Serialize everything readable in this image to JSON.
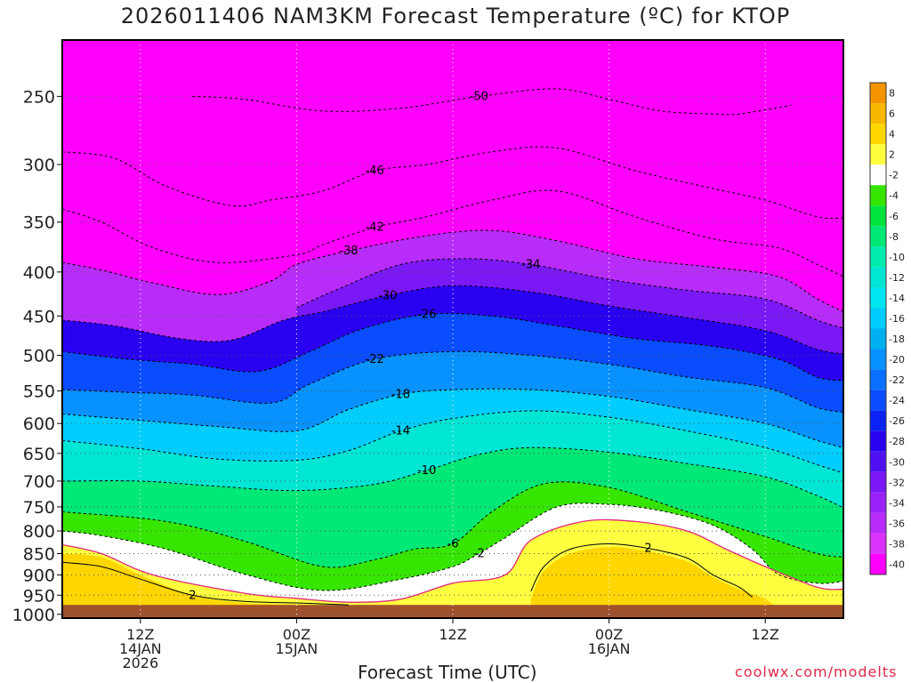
{
  "title": "2026011406 NAM3KM Forecast Temperature (ºC) for KTOP",
  "credit": "coolwx.com/modelts",
  "chart_data": {
    "type": "contour",
    "title": "2026011406 NAM3KM Forecast Temperature (ºC) for KTOP",
    "xlabel": "Forecast Time (UTC)",
    "ylabel": "",
    "y_axis_unit": "hPa",
    "y_scale": "log-pressure",
    "ylim": [
      1000,
      200
    ],
    "y_ticks": [
      250,
      300,
      350,
      400,
      450,
      500,
      550,
      600,
      650,
      700,
      750,
      800,
      850,
      900,
      950,
      1000
    ],
    "x_ticks": [
      {
        "hour": 6,
        "lines": [
          "12Z",
          "14JAN",
          "2026"
        ]
      },
      {
        "hour": 18,
        "lines": [
          "00Z",
          "15JAN"
        ]
      },
      {
        "hour": 30,
        "lines": [
          "12Z"
        ]
      },
      {
        "hour": 42,
        "lines": [
          "00Z",
          "16JAN"
        ]
      },
      {
        "hour": 54,
        "lines": [
          "12Z"
        ]
      }
    ],
    "xlim": [
      0,
      60
    ],
    "grid": true,
    "colorbar": {
      "labels": [
        "8",
        "6",
        "4",
        "2",
        "-2",
        "-4",
        "-6",
        "-8",
        "-10",
        "-12",
        "-14",
        "-16",
        "-18",
        "-20",
        "-22",
        "-24",
        "-26",
        "-28",
        "-30",
        "-32",
        "-34",
        "-36",
        "-38",
        "-40"
      ],
      "colors": [
        "#f39400",
        "#f8b800",
        "#ffd600",
        "#ffff40",
        "#ffffff",
        "#36e600",
        "#00e33c",
        "#00e876",
        "#00ecac",
        "#00e6d4",
        "#00e6f0",
        "#00cdfb",
        "#00b0f0",
        "#0892ff",
        "#0a70ff",
        "#0a4cff",
        "#0a22f4",
        "#2a00f0",
        "#5010f4",
        "#7a18f6",
        "#9a22f8",
        "#b82cfa",
        "#dc33fb",
        "#ff00ff"
      ]
    },
    "isotherms": [
      {
        "temp": -50,
        "label": "-50",
        "points": [
          [
            10,
            250
          ],
          [
            14,
            252
          ],
          [
            20,
            260
          ],
          [
            26,
            258
          ],
          [
            32,
            250
          ],
          [
            38,
            245
          ],
          [
            42,
            252
          ],
          [
            46,
            260
          ],
          [
            50,
            262
          ],
          [
            52,
            262
          ],
          [
            56,
            256
          ]
        ]
      },
      {
        "temp": -46,
        "label": "-46",
        "points": [
          [
            0,
            290
          ],
          [
            4,
            295
          ],
          [
            8,
            318
          ],
          [
            13,
            335
          ],
          [
            16,
            330
          ],
          [
            20,
            322
          ],
          [
            24,
            305
          ],
          [
            28,
            300
          ],
          [
            33,
            290
          ],
          [
            38,
            287
          ],
          [
            44,
            305
          ],
          [
            50,
            320
          ],
          [
            54,
            330
          ],
          [
            58,
            345
          ],
          [
            60,
            346
          ]
        ]
      },
      {
        "temp": -42,
        "label": "-42",
        "points": [
          [
            0,
            338
          ],
          [
            3,
            350
          ],
          [
            7,
            375
          ],
          [
            12,
            390
          ],
          [
            18,
            382
          ],
          [
            20,
            372
          ],
          [
            24,
            355
          ],
          [
            28,
            345
          ],
          [
            33,
            330
          ],
          [
            38,
            322
          ],
          [
            44,
            345
          ],
          [
            50,
            366
          ],
          [
            55,
            375
          ],
          [
            58,
            392
          ],
          [
            60,
            405
          ]
        ]
      },
      {
        "temp": -38,
        "label": "-38",
        "points": [
          [
            0,
            390
          ],
          [
            3,
            398
          ],
          [
            7,
            412
          ],
          [
            12,
            425
          ],
          [
            16,
            410
          ],
          [
            18,
            392
          ],
          [
            22,
            378
          ],
          [
            28,
            363
          ],
          [
            33,
            358
          ],
          [
            38,
            368
          ],
          [
            44,
            386
          ],
          [
            50,
            395
          ],
          [
            55,
            405
          ],
          [
            58,
            430
          ],
          [
            60,
            445
          ]
        ]
      },
      {
        "temp": -34,
        "label": "-34",
        "points": [
          [
            18,
            440
          ],
          [
            21,
            420
          ],
          [
            26,
            392
          ],
          [
            31,
            386
          ],
          [
            36,
            392
          ],
          [
            42,
            408
          ],
          [
            48,
            420
          ],
          [
            54,
            430
          ],
          [
            58,
            455
          ],
          [
            60,
            465
          ]
        ]
      },
      {
        "temp": -30,
        "label": "-30",
        "points": [
          [
            0,
            455
          ],
          [
            4,
            462
          ],
          [
            9,
            478
          ],
          [
            13,
            480
          ],
          [
            17,
            455
          ],
          [
            20,
            445
          ],
          [
            25,
            426
          ],
          [
            30,
            415
          ],
          [
            36,
            422
          ],
          [
            42,
            438
          ],
          [
            48,
            452
          ],
          [
            54,
            468
          ],
          [
            58,
            492
          ],
          [
            60,
            498
          ]
        ]
      },
      {
        "temp": -26,
        "label": "-26",
        "points": [
          [
            0,
            495
          ],
          [
            5,
            505
          ],
          [
            10,
            512
          ],
          [
            15,
            522
          ],
          [
            19,
            495
          ],
          [
            23,
            466
          ],
          [
            28,
            448
          ],
          [
            33,
            450
          ],
          [
            38,
            462
          ],
          [
            44,
            478
          ],
          [
            50,
            488
          ],
          [
            55,
            505
          ],
          [
            58,
            530
          ],
          [
            60,
            535
          ]
        ]
      },
      {
        "temp": -22,
        "label": "-22",
        "points": [
          [
            0,
            548
          ],
          [
            5,
            552
          ],
          [
            10,
            556
          ],
          [
            16,
            568
          ],
          [
            19,
            540
          ],
          [
            24,
            505
          ],
          [
            30,
            495
          ],
          [
            36,
            500
          ],
          [
            42,
            512
          ],
          [
            48,
            530
          ],
          [
            54,
            545
          ],
          [
            58,
            575
          ],
          [
            60,
            582
          ]
        ]
      },
      {
        "temp": -18,
        "label": "-18",
        "points": [
          [
            0,
            585
          ],
          [
            6,
            595
          ],
          [
            12,
            605
          ],
          [
            18,
            612
          ],
          [
            22,
            578
          ],
          [
            26,
            555
          ],
          [
            30,
            548
          ],
          [
            36,
            548
          ],
          [
            42,
            558
          ],
          [
            48,
            578
          ],
          [
            54,
            600
          ],
          [
            58,
            628
          ],
          [
            60,
            640
          ]
        ]
      },
      {
        "temp": -14,
        "label": "-14",
        "points": [
          [
            0,
            628
          ],
          [
            6,
            642
          ],
          [
            12,
            660
          ],
          [
            18,
            662
          ],
          [
            22,
            645
          ],
          [
            26,
            612
          ],
          [
            30,
            592
          ],
          [
            36,
            580
          ],
          [
            42,
            590
          ],
          [
            48,
            612
          ],
          [
            54,
            640
          ],
          [
            58,
            670
          ],
          [
            60,
            685
          ]
        ]
      },
      {
        "temp": -10,
        "label": "-10",
        "points": [
          [
            0,
            700
          ],
          [
            6,
            700
          ],
          [
            12,
            710
          ],
          [
            18,
            718
          ],
          [
            24,
            706
          ],
          [
            28,
            680
          ],
          [
            32,
            652
          ],
          [
            36,
            640
          ],
          [
            42,
            648
          ],
          [
            48,
            668
          ],
          [
            54,
            692
          ],
          [
            58,
            728
          ],
          [
            60,
            752
          ]
        ]
      },
      {
        "temp": -6,
        "label": "-6",
        "points": [
          [
            0,
            760
          ],
          [
            8,
            780
          ],
          [
            14,
            822
          ],
          [
            20,
            880
          ],
          [
            24,
            864
          ],
          [
            27,
            840
          ],
          [
            30,
            828
          ],
          [
            33,
            760
          ],
          [
            37,
            705
          ],
          [
            42,
            712
          ],
          [
            48,
            760
          ],
          [
            54,
            812
          ],
          [
            58,
            850
          ],
          [
            60,
            858
          ]
        ]
      },
      {
        "temp": -2,
        "label": "-2",
        "points": [
          [
            0,
            800
          ],
          [
            3,
            810
          ],
          [
            8,
            840
          ],
          [
            14,
            898
          ],
          [
            20,
            938
          ],
          [
            26,
            910
          ],
          [
            30,
            880
          ],
          [
            32,
            850
          ],
          [
            34,
            815
          ],
          [
            38,
            750
          ],
          [
            42,
            745
          ],
          [
            46,
            758
          ],
          [
            50,
            788
          ],
          [
            53,
            840
          ],
          [
            55,
            898
          ],
          [
            58,
            920
          ],
          [
            60,
            915
          ]
        ]
      },
      {
        "temp": 0,
        "label": "",
        "points": [
          [
            0,
            830
          ],
          [
            3,
            850
          ],
          [
            7,
            900
          ],
          [
            14,
            945
          ],
          [
            18,
            958
          ],
          [
            22,
            968
          ],
          [
            26,
            960
          ],
          [
            30,
            920
          ],
          [
            34,
            900
          ],
          [
            36,
            820
          ],
          [
            40,
            780
          ],
          [
            44,
            780
          ],
          [
            48,
            800
          ],
          [
            51,
            840
          ],
          [
            54,
            880
          ],
          [
            58,
            930
          ],
          [
            60,
            935
          ]
        ]
      },
      {
        "temp": 2,
        "label": "2",
        "points": [
          [
            0,
            870
          ],
          [
            3,
            880
          ],
          [
            6,
            910
          ],
          [
            10,
            950
          ],
          [
            14,
            966
          ],
          [
            18,
            970
          ],
          [
            22,
            975
          ]
        ]
      },
      {
        "temp": 2,
        "label": "2",
        "points": [
          [
            36,
            940
          ],
          [
            37,
            880
          ],
          [
            39,
            840
          ],
          [
            42,
            828
          ],
          [
            45,
            838
          ],
          [
            48,
            860
          ],
          [
            50,
            900
          ],
          [
            52,
            930
          ],
          [
            53,
            955
          ]
        ]
      }
    ],
    "warm_regions": [
      {
        "temp": 2,
        "points": [
          [
            0,
            850
          ],
          [
            3,
            858
          ],
          [
            6,
            900
          ],
          [
            10,
            950
          ],
          [
            14,
            970
          ],
          [
            20,
            975
          ],
          [
            20,
            985
          ],
          [
            0,
            985
          ]
        ]
      },
      {
        "temp": 2,
        "points": [
          [
            36,
            960
          ],
          [
            37,
            890
          ],
          [
            39,
            850
          ],
          [
            42,
            835
          ],
          [
            45,
            845
          ],
          [
            48,
            868
          ],
          [
            50,
            905
          ],
          [
            52,
            935
          ],
          [
            54,
            958
          ],
          [
            55,
            985
          ],
          [
            36,
            985
          ]
        ]
      }
    ],
    "surface_color": "#a0522d"
  }
}
